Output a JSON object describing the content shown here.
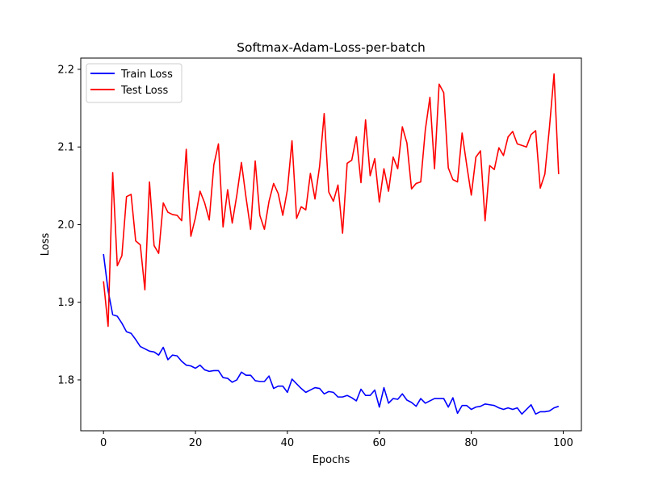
{
  "chart_data": {
    "type": "line",
    "title": "Softmax-Adam-Loss-per-batch",
    "xlabel": "Epochs",
    "ylabel": "Loss",
    "xlim": [
      -4.95,
      103.95
    ],
    "ylim": [
      1.7345,
      2.2145
    ],
    "xticks": [
      0,
      20,
      40,
      60,
      80,
      100
    ],
    "yticks": [
      1.8,
      1.9,
      2.0,
      2.1,
      2.2
    ],
    "grid": false,
    "legend": "top-left",
    "series": [
      {
        "name": "Train Loss",
        "color": "#0000ff",
        "x": [
          0,
          1,
          2,
          3,
          4,
          5,
          6,
          7,
          8,
          9,
          10,
          11,
          12,
          13,
          14,
          15,
          16,
          17,
          18,
          19,
          20,
          21,
          22,
          23,
          24,
          25,
          26,
          27,
          28,
          29,
          30,
          31,
          32,
          33,
          34,
          35,
          36,
          37,
          38,
          39,
          40,
          41,
          42,
          43,
          44,
          45,
          46,
          47,
          48,
          49,
          50,
          51,
          52,
          53,
          54,
          55,
          56,
          57,
          58,
          59,
          60,
          61,
          62,
          63,
          64,
          65,
          66,
          67,
          68,
          69,
          70,
          71,
          72,
          73,
          74,
          75,
          76,
          77,
          78,
          79,
          80,
          81,
          82,
          83,
          84,
          85,
          86,
          87,
          88,
          89,
          90,
          91,
          92,
          93,
          94,
          95,
          96,
          97,
          98,
          99
        ],
        "values": [
          1.962,
          1.915,
          1.884,
          1.882,
          1.873,
          1.862,
          1.86,
          1.852,
          1.843,
          1.84,
          1.837,
          1.836,
          1.832,
          1.842,
          1.826,
          1.832,
          1.831,
          1.824,
          1.819,
          1.818,
          1.815,
          1.819,
          1.813,
          1.811,
          1.812,
          1.812,
          1.803,
          1.802,
          1.797,
          1.8,
          1.81,
          1.806,
          1.806,
          1.799,
          1.798,
          1.798,
          1.805,
          1.789,
          1.792,
          1.792,
          1.784,
          1.801,
          1.795,
          1.789,
          1.784,
          1.787,
          1.79,
          1.789,
          1.782,
          1.785,
          1.784,
          1.778,
          1.778,
          1.78,
          1.777,
          1.773,
          1.788,
          1.78,
          1.78,
          1.787,
          1.765,
          1.79,
          1.77,
          1.776,
          1.775,
          1.782,
          1.774,
          1.771,
          1.766,
          1.776,
          1.77,
          1.773,
          1.776,
          1.776,
          1.776,
          1.765,
          1.777,
          1.757,
          1.767,
          1.767,
          1.762,
          1.765,
          1.766,
          1.769,
          1.768,
          1.767,
          1.764,
          1.762,
          1.764,
          1.762,
          1.764,
          1.756,
          1.762,
          1.768,
          1.756,
          1.759,
          1.759,
          1.76,
          1.764,
          1.766
        ]
      },
      {
        "name": "Test Loss",
        "color": "#ff0000",
        "x": [
          0,
          1,
          2,
          3,
          4,
          5,
          6,
          7,
          8,
          9,
          10,
          11,
          12,
          13,
          14,
          15,
          16,
          17,
          18,
          19,
          20,
          21,
          22,
          23,
          24,
          25,
          26,
          27,
          28,
          29,
          30,
          31,
          32,
          33,
          34,
          35,
          36,
          37,
          38,
          39,
          40,
          41,
          42,
          43,
          44,
          45,
          46,
          47,
          48,
          49,
          50,
          51,
          52,
          53,
          54,
          55,
          56,
          57,
          58,
          59,
          60,
          61,
          62,
          63,
          64,
          65,
          66,
          67,
          68,
          69,
          70,
          71,
          72,
          73,
          74,
          75,
          76,
          77,
          78,
          79,
          80,
          81,
          82,
          83,
          84,
          85,
          86,
          87,
          88,
          89,
          90,
          91,
          92,
          93,
          94,
          95,
          96,
          97,
          98,
          99
        ],
        "values": [
          1.927,
          1.869,
          2.067,
          1.947,
          1.96,
          2.036,
          2.039,
          1.979,
          1.974,
          1.916,
          2.055,
          1.973,
          1.963,
          2.028,
          2.016,
          2.013,
          2.012,
          2.005,
          2.097,
          1.985,
          2.009,
          2.043,
          2.028,
          2.006,
          2.077,
          2.104,
          1.997,
          2.045,
          2.002,
          2.038,
          2.08,
          2.035,
          1.994,
          2.082,
          2.012,
          1.994,
          2.03,
          2.053,
          2.04,
          2.012,
          2.045,
          2.108,
          2.008,
          2.023,
          2.019,
          2.066,
          2.033,
          2.075,
          2.143,
          2.042,
          2.03,
          2.051,
          1.989,
          2.079,
          2.083,
          2.113,
          2.054,
          2.135,
          2.063,
          2.085,
          2.029,
          2.072,
          2.043,
          2.087,
          2.072,
          2.126,
          2.105,
          2.046,
          2.053,
          2.055,
          2.122,
          2.164,
          2.072,
          2.181,
          2.17,
          2.073,
          2.058,
          2.055,
          2.118,
          2.077,
          2.038,
          2.087,
          2.095,
          2.005,
          2.076,
          2.071,
          2.099,
          2.089,
          2.113,
          2.12,
          2.104,
          2.102,
          2.1,
          2.116,
          2.121,
          2.047,
          2.065,
          2.125,
          2.194,
          2.065
        ]
      }
    ]
  }
}
